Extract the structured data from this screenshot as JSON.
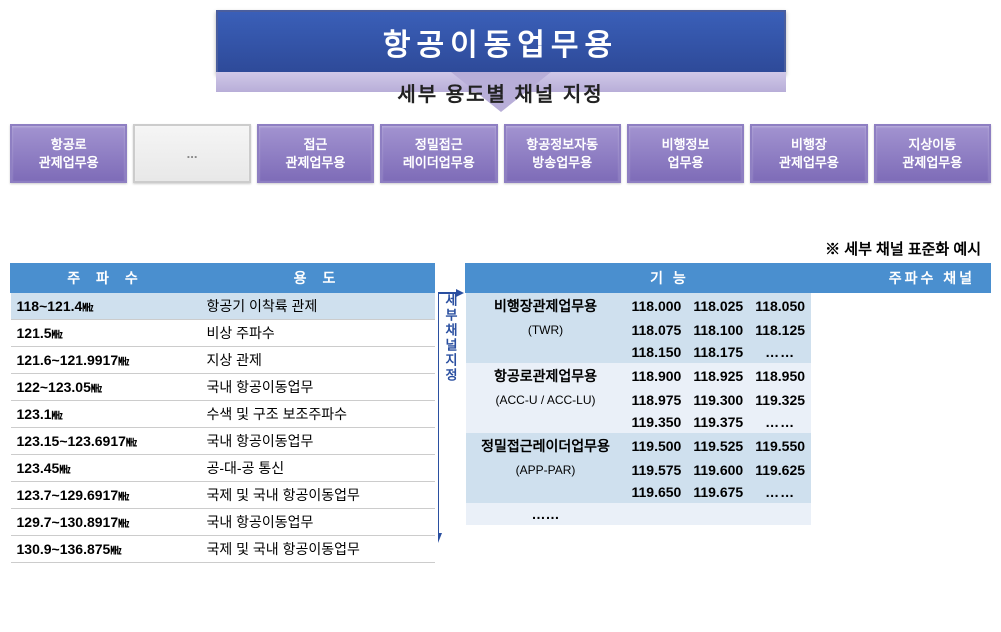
{
  "colors": {
    "title_bg_top": "#3a5fb8",
    "title_bg_bottom": "#2e4a99",
    "title_text": "#ffffff",
    "arrow_bg": "#b8aed8",
    "cat_bg_top": "#a293d0",
    "cat_bg_bottom": "#7e6cb8",
    "cat_text": "#ffffff",
    "th_bg": "#4a8fcf",
    "th_text": "#ffffff",
    "row_hilite": "#cfe0ee",
    "row_alt": "#eaf0f8",
    "arrow_blue": "#2a4fa0"
  },
  "main_title": "항공이동업무용",
  "sub_title": "세부 용도별 채널 지정",
  "categories": [
    {
      "line1": "항공로",
      "line2": "관제업무용"
    },
    {
      "line1": "...",
      "line2": "",
      "ellipsis": true
    },
    {
      "line1": "접근",
      "line2": "관제업무용"
    },
    {
      "line1": "정밀접근",
      "line2": "레이더업무용"
    },
    {
      "line1": "항공정보자동",
      "line2": "방송업무용"
    },
    {
      "line1": "비행정보",
      "line2": "업무용"
    },
    {
      "line1": "비행장",
      "line2": "관제업무용"
    },
    {
      "line1": "지상이동",
      "line2": "관제업무용"
    }
  ],
  "note": "※ 세부 채널 표준화 예시",
  "mid_label": "세부채널지정",
  "left_table": {
    "headers": [
      "주 파 수",
      "용   도"
    ],
    "rows": [
      {
        "freq": "118~121.4㎒",
        "use": "항공기 이착륙 관제",
        "hilite": true
      },
      {
        "freq": "121.5㎒",
        "use": "비상 주파수"
      },
      {
        "freq": "121.6~121.9917㎒",
        "use": "지상 관제"
      },
      {
        "freq": "122~123.05㎒",
        "use": "국내 항공이동업무"
      },
      {
        "freq": "123.1㎒",
        "use": "수색 및 구조 보조주파수"
      },
      {
        "freq": "123.15~123.6917㎒",
        "use": "국내 항공이동업무"
      },
      {
        "freq": "123.45㎒",
        "use": "공-대-공 통신"
      },
      {
        "freq": "123.7~129.6917㎒",
        "use": "국제 및 국내 항공이동업무"
      },
      {
        "freq": "129.7~130.8917㎒",
        "use": "국내 항공이동업무"
      },
      {
        "freq": "130.9~136.875㎒",
        "use": "국제 및 국내 항공이동업무"
      }
    ]
  },
  "right_table": {
    "headers": [
      "기   능",
      "주파수 채널"
    ],
    "groups": [
      {
        "fn": "비행장관제업무용",
        "fn_sub": "(TWR)",
        "class": "group-a",
        "rows": [
          [
            "118.000",
            "118.025",
            "118.050"
          ],
          [
            "118.075",
            "118.100",
            "118.125"
          ],
          [
            "118.150",
            "118.175",
            "……"
          ]
        ]
      },
      {
        "fn": "항공로관제업무용",
        "fn_sub": "(ACC-U / ACC-LU)",
        "class": "group-b",
        "rows": [
          [
            "118.900",
            "118.925",
            "118.950"
          ],
          [
            "118.975",
            "119.300",
            "119.325"
          ],
          [
            "119.350",
            "119.375",
            "……"
          ]
        ]
      },
      {
        "fn": "정밀접근레이더업무용",
        "fn_sub": "(APP-PAR)",
        "class": "group-a",
        "rows": [
          [
            "119.500",
            "119.525",
            "119.550"
          ],
          [
            "119.575",
            "119.600",
            "119.625"
          ],
          [
            "119.650",
            "119.675",
            "……"
          ]
        ]
      },
      {
        "fn": "……",
        "fn_sub": "",
        "class": "group-b",
        "rows": [
          [
            "",
            "",
            ""
          ]
        ]
      }
    ]
  }
}
